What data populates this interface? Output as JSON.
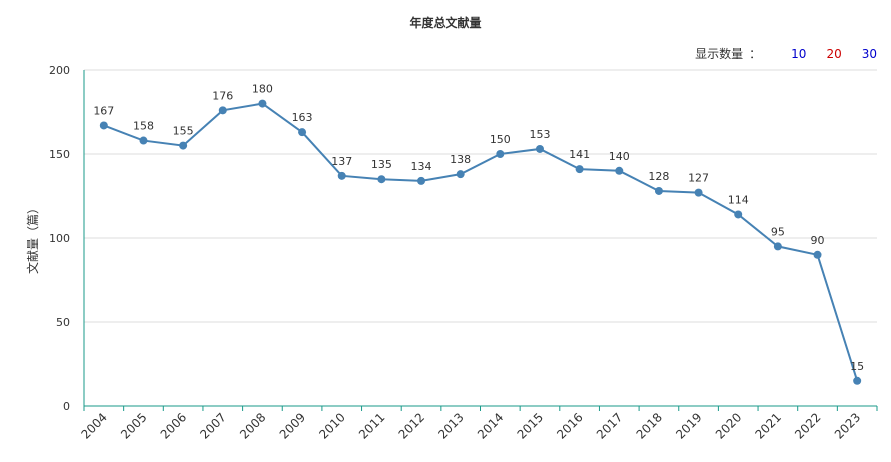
{
  "header": {
    "title": "年度总文献量"
  },
  "display_count": {
    "label": "显示数量",
    "separator": "：",
    "options": [
      {
        "label": "10",
        "color": "#0000cc"
      },
      {
        "label": "20",
        "color": "#cc0000"
      },
      {
        "label": "30",
        "color": "#0000cc"
      }
    ]
  },
  "chart_data": {
    "type": "line",
    "title": "年度总文献量",
    "ylabel": "文献量（篇）",
    "xlabel": "",
    "ylim": [
      0,
      200
    ],
    "yticks": [
      0,
      50,
      100,
      150,
      200
    ],
    "grid": true,
    "categories": [
      "2004",
      "2005",
      "2006",
      "2007",
      "2008",
      "2009",
      "2010",
      "2011",
      "2012",
      "2013",
      "2014",
      "2015",
      "2016",
      "2017",
      "2018",
      "2019",
      "2020",
      "2021",
      "2022",
      "2023"
    ],
    "series": [
      {
        "values": [
          167,
          158,
          155,
          176,
          180,
          163,
          137,
          135,
          134,
          138,
          150,
          153,
          141,
          140,
          128,
          127,
          114,
          95,
          90,
          15
        ],
        "color": "#4682b4"
      }
    ]
  }
}
